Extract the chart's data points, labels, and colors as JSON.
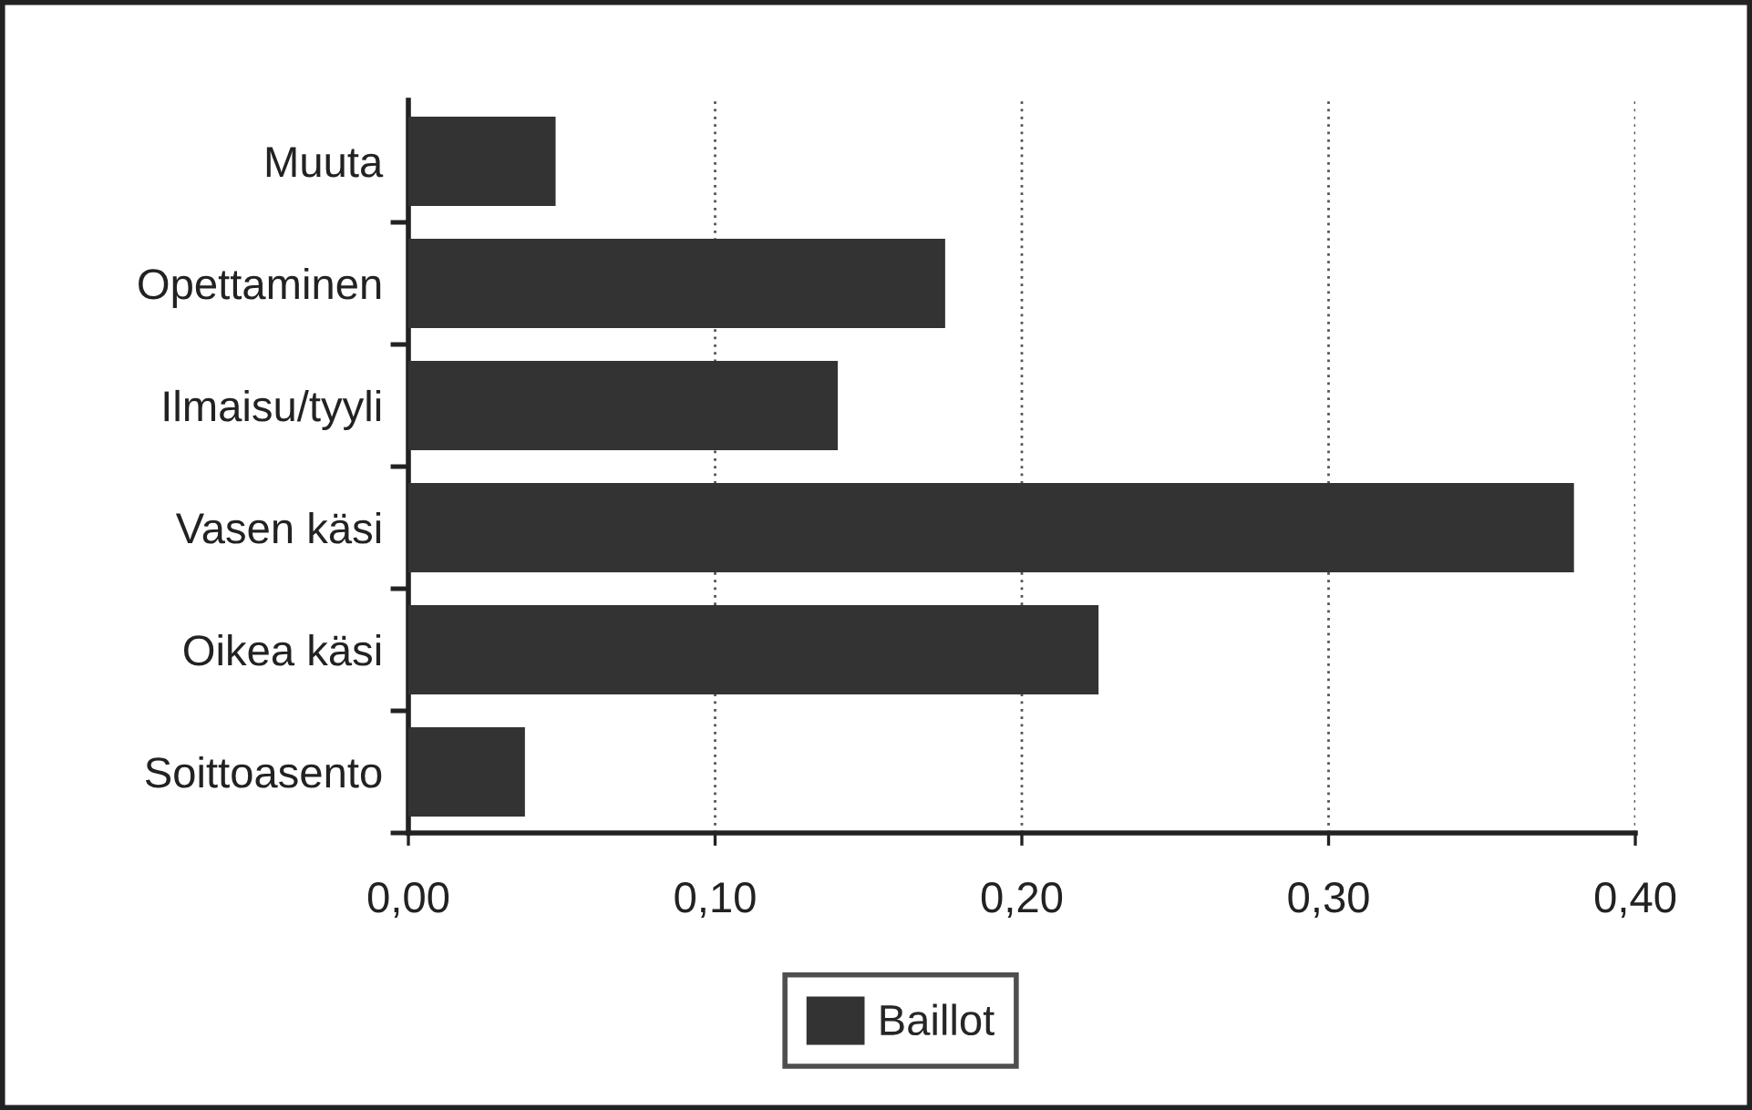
{
  "chart_data": {
    "type": "bar",
    "orientation": "horizontal",
    "categories": [
      "Muuta",
      "Opettaminen",
      "Ilmaisu/tyyli",
      "Vasen käsi",
      "Oikea käsi",
      "Soittoasento"
    ],
    "series": [
      {
        "name": "Baillot",
        "color": "#333333",
        "values": [
          0.048,
          0.175,
          0.14,
          0.38,
          0.225,
          0.038
        ]
      }
    ],
    "xlim": [
      0,
      0.4
    ],
    "xticks": [
      {
        "value": 0,
        "label": "0,00"
      },
      {
        "value": 0.1,
        "label": "0,10"
      },
      {
        "value": 0.2,
        "label": "0,20"
      },
      {
        "value": 0.3,
        "label": "0,30"
      },
      {
        "value": 0.4,
        "label": "0,40"
      }
    ],
    "grid": "x",
    "legend": "bottom"
  }
}
